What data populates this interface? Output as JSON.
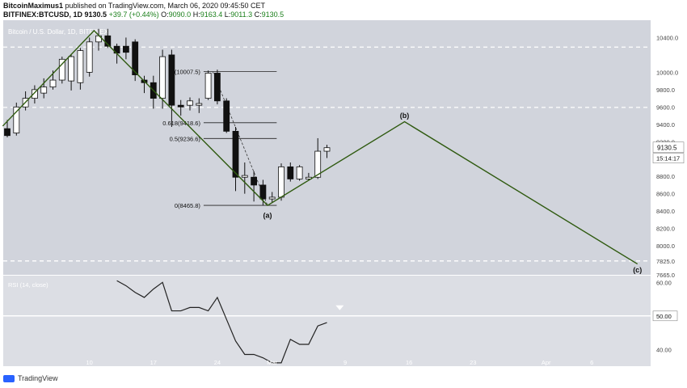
{
  "header": {
    "author": "BitcoinMaximus1",
    "published": "published on TradingView.com, March 06, 2020 09:45:50 CET",
    "symbol": "BITFINEX:BTCUSD, 1D",
    "last": "9130.5",
    "change": "+39.7 (+0.44%)",
    "o_label": "O:",
    "o": "9090.0",
    "h_label": "H:",
    "h": "9163.4",
    "l_label": "L:",
    "l": "9011.3",
    "c_label": "C:",
    "c": "9130.5"
  },
  "footer": {
    "brand": "TradingView"
  },
  "colors": {
    "bg": "#d1d4dc",
    "wave": "#2f5a10",
    "candle_up": "#ffffff",
    "candle_down": "#111111",
    "rsi": "#222222"
  },
  "chart_data": [
    {
      "type": "candlestick",
      "title": "Bitcoin / U.S. Dollar, 1D, BITFINEX",
      "ylim": [
        7665,
        10600
      ],
      "y_ticks": [
        "10400.0",
        "10000.0",
        "9800.0",
        "9600.0",
        "9400.0",
        "9200.0",
        "8800.0",
        "8600.0",
        "8400.0",
        "8200.0",
        "8000.0",
        "7825.0",
        "7665.0"
      ],
      "x_ticks": [
        {
          "label": "10",
          "day": 10
        },
        {
          "label": "17",
          "day": 17
        },
        {
          "label": "24",
          "day": 24
        },
        {
          "label": "Mar",
          "day": 30
        },
        {
          "label": "9",
          "day": 38
        },
        {
          "label": "16",
          "day": 45
        },
        {
          "label": "23",
          "day": 52
        },
        {
          "label": "Apr",
          "day": 60
        },
        {
          "label": "6",
          "day": 65
        }
      ],
      "candles": [
        {
          "day": 1,
          "o": 9350,
          "h": 9450,
          "l": 9250,
          "c": 9270
        },
        {
          "day": 2,
          "o": 9300,
          "h": 9650,
          "l": 9270,
          "c": 9600
        },
        {
          "day": 3,
          "o": 9600,
          "h": 9780,
          "l": 9560,
          "c": 9700
        },
        {
          "day": 4,
          "o": 9700,
          "h": 9850,
          "l": 9640,
          "c": 9800
        },
        {
          "day": 5,
          "o": 9760,
          "h": 9930,
          "l": 9700,
          "c": 9830
        },
        {
          "day": 6,
          "o": 9830,
          "h": 10020,
          "l": 9800,
          "c": 9910
        },
        {
          "day": 7,
          "o": 9910,
          "h": 10180,
          "l": 9870,
          "c": 10150
        },
        {
          "day": 8,
          "o": 9900,
          "h": 10200,
          "l": 9790,
          "c": 10180
        },
        {
          "day": 9,
          "o": 9880,
          "h": 10280,
          "l": 9800,
          "c": 10250
        },
        {
          "day": 10,
          "o": 10000,
          "h": 10400,
          "l": 9950,
          "c": 10350
        },
        {
          "day": 11,
          "o": 10350,
          "h": 10500,
          "l": 10250,
          "c": 10420
        },
        {
          "day": 12,
          "o": 10420,
          "h": 10500,
          "l": 10280,
          "c": 10300
        },
        {
          "day": 13,
          "o": 10300,
          "h": 10330,
          "l": 10100,
          "c": 10220
        },
        {
          "day": 14,
          "o": 10300,
          "h": 10400,
          "l": 10150,
          "c": 10230
        },
        {
          "day": 15,
          "o": 10350,
          "h": 10380,
          "l": 9900,
          "c": 9970
        },
        {
          "day": 16,
          "o": 9910,
          "h": 9960,
          "l": 9760,
          "c": 9880
        },
        {
          "day": 17,
          "o": 9880,
          "h": 9960,
          "l": 9580,
          "c": 9700
        },
        {
          "day": 18,
          "o": 9700,
          "h": 10260,
          "l": 9580,
          "c": 10180
        },
        {
          "day": 19,
          "o": 10200,
          "h": 10260,
          "l": 9370,
          "c": 9620
        },
        {
          "day": 20,
          "o": 9620,
          "h": 9680,
          "l": 9500,
          "c": 9600
        },
        {
          "day": 21,
          "o": 9620,
          "h": 9710,
          "l": 9560,
          "c": 9670
        },
        {
          "day": 22,
          "o": 9620,
          "h": 9700,
          "l": 9530,
          "c": 9640
        },
        {
          "day": 23,
          "o": 9700,
          "h": 10020,
          "l": 9680,
          "c": 9990
        },
        {
          "day": 24,
          "o": 9990,
          "h": 10030,
          "l": 9630,
          "c": 9670
        },
        {
          "day": 25,
          "o": 9670,
          "h": 9700,
          "l": 9300,
          "c": 9320
        },
        {
          "day": 26,
          "o": 9320,
          "h": 9370,
          "l": 8630,
          "c": 8790
        },
        {
          "day": 27,
          "o": 8790,
          "h": 8960,
          "l": 8600,
          "c": 8810
        },
        {
          "day": 28,
          "o": 8790,
          "h": 8860,
          "l": 8510,
          "c": 8700
        },
        {
          "day": 29,
          "o": 8700,
          "h": 8760,
          "l": 8466,
          "c": 8540
        },
        {
          "day": 30,
          "o": 8540,
          "h": 8620,
          "l": 8500,
          "c": 8560
        },
        {
          "day": 31,
          "o": 8560,
          "h": 8950,
          "l": 8520,
          "c": 8910
        },
        {
          "day": 32,
          "o": 8910,
          "h": 8960,
          "l": 8740,
          "c": 8770
        },
        {
          "day": 33,
          "o": 8770,
          "h": 8930,
          "l": 8750,
          "c": 8910
        },
        {
          "day": 34,
          "o": 8770,
          "h": 8840,
          "l": 8750,
          "c": 8790
        },
        {
          "day": 35,
          "o": 8790,
          "h": 9240,
          "l": 8770,
          "c": 9090
        },
        {
          "day": 36,
          "o": 9090,
          "h": 9163.4,
          "l": 9011.3,
          "c": 9130.5
        }
      ],
      "wave_path": [
        {
          "day": 0.5,
          "price": 9380
        },
        {
          "day": 10.5,
          "price": 10480
        },
        {
          "day": 29.5,
          "price": 8465.8
        },
        {
          "day": 44.5,
          "price": 9430
        },
        {
          "day": 70,
          "price": 7790
        }
      ],
      "wave_labels": [
        {
          "label": "(a)",
          "day": 29.5,
          "price": 8350
        },
        {
          "label": "(b)",
          "day": 44.5,
          "price": 9500
        },
        {
          "label": "(c)",
          "day": 70,
          "price": 7720
        }
      ],
      "fib_levels": [
        {
          "label": "1(10007.5)",
          "price": 10007.5
        },
        {
          "label": "0.618(9418.6)",
          "price": 9418.6
        },
        {
          "label": "0.5(9236.6)",
          "price": 9236.6
        },
        {
          "label": "0(8465.8)",
          "price": 8465.8
        }
      ],
      "fib_range": {
        "start_day": 22.5,
        "end_day": 30.5
      },
      "fib_diagonal": [
        {
          "day": 23.5,
          "price": 10007.5
        },
        {
          "day": 29.5,
          "price": 8465.8
        }
      ],
      "dashed_levels": [
        10290,
        9595,
        7825
      ],
      "price_label": "9130.5",
      "countdown": "15:14:17"
    },
    {
      "type": "line",
      "title": "RSI (14, close)",
      "ylim": [
        35,
        62
      ],
      "y_ticks": [
        "60.00",
        "50.00",
        "40.00"
      ],
      "reference_line": 50,
      "series": [
        {
          "values": [
            {
              "day": 13,
              "v": 60.5
            },
            {
              "day": 14,
              "v": 59
            },
            {
              "day": 15,
              "v": 57
            },
            {
              "day": 16,
              "v": 55.5
            },
            {
              "day": 17,
              "v": 58
            },
            {
              "day": 18,
              "v": 60
            },
            {
              "day": 19,
              "v": 51.5
            },
            {
              "day": 20,
              "v": 51.5
            },
            {
              "day": 21,
              "v": 52.5
            },
            {
              "day": 22,
              "v": 52.5
            },
            {
              "day": 23,
              "v": 51.5
            },
            {
              "day": 24,
              "v": 55.5
            },
            {
              "day": 25,
              "v": 49
            },
            {
              "day": 26,
              "v": 42.5
            },
            {
              "day": 27,
              "v": 38.5
            },
            {
              "day": 28,
              "v": 38.5
            },
            {
              "day": 29,
              "v": 37.5
            },
            {
              "day": 30,
              "v": 36
            },
            {
              "day": 31,
              "v": 36
            },
            {
              "day": 32,
              "v": 43
            },
            {
              "day": 33,
              "v": 41.5
            },
            {
              "day": 34,
              "v": 41.5
            },
            {
              "day": 35,
              "v": 47
            },
            {
              "day": 36,
              "v": 48
            }
          ]
        }
      ]
    }
  ]
}
